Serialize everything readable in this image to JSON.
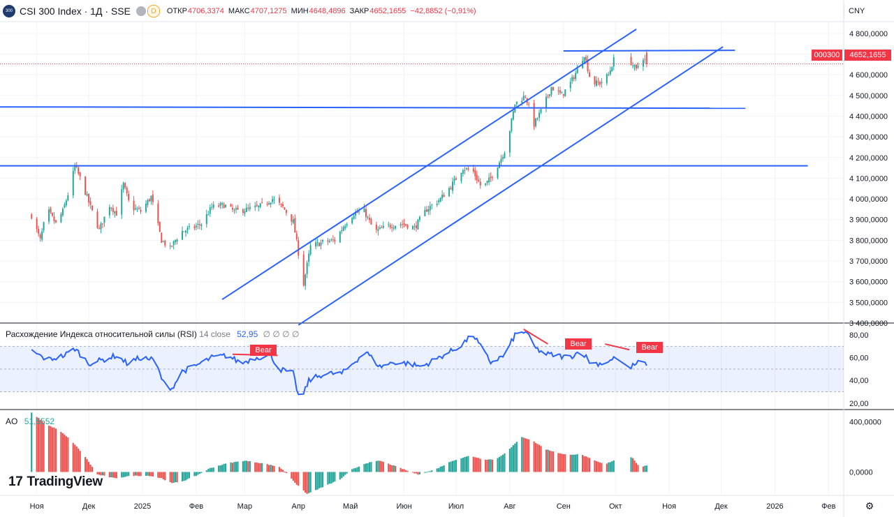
{
  "header": {
    "symbol_icon": "300",
    "title": "CSI 300 Index · 1Д · SSE",
    "interval_badge": "D",
    "ohlc": [
      {
        "label": "ОТКР",
        "value": "4706,3374"
      },
      {
        "label": "МАКС",
        "value": "4707,1275"
      },
      {
        "label": "МИН",
        "value": "4648,4896"
      },
      {
        "label": "ЗАКР",
        "value": "4652,1655"
      }
    ],
    "change": "−42,8852 (−0,91%)",
    "currency": "CNY"
  },
  "price_tag": {
    "ticker": "000300",
    "price": "4652,1655"
  },
  "rsi": {
    "label": "Расхождение Индекса относительной силы (RSI)",
    "params": "14 close",
    "value": "52,95",
    "placeholders": "∅ ∅ ∅ ∅",
    "bear_labels": [
      "Bear",
      "Bear",
      "Bear"
    ]
  },
  "ao": {
    "label": "AO",
    "value": "51,5552"
  },
  "brand": {
    "logo_mark": "17",
    "name": "TradingView"
  },
  "settings_icon": "gear-icon",
  "colors": {
    "up": "#26a69a",
    "down": "#ef5350",
    "lines": "#2962ff",
    "rsi": "#2962ff",
    "bear": "#f23645"
  },
  "chart_data": [
    {
      "type": "candlestick",
      "title": "CSI 300 Index · 1Д · SSE",
      "ylim": [
        3400,
        4850
      ],
      "y_ticks": [
        "3 400,0000",
        "3 500,0000",
        "3 600,0000",
        "3 700,0000",
        "3 800,0000",
        "3 900,0000",
        "4 000,0000",
        "4 100,0000",
        "4 200,0000",
        "4 300,0000",
        "4 400,0000",
        "4 500,0000",
        "4 600,0000",
        "4 700,0000",
        "4 800,0000"
      ],
      "y_tick_values": [
        3400,
        3500,
        3600,
        3700,
        3800,
        3900,
        4000,
        4100,
        4200,
        4300,
        4400,
        4500,
        4600,
        4700,
        4800
      ],
      "x_labels": [
        "Ноя",
        "Дек",
        "2025",
        "Фев",
        "Мар",
        "Апр",
        "Май",
        "Июн",
        "Июл",
        "Авг",
        "Сен",
        "Окт",
        "Ноя",
        "Дек",
        "2026",
        "Фев"
      ],
      "x_label_days": [
        0,
        30,
        61,
        92,
        120,
        151,
        181,
        212,
        242,
        273,
        304,
        334,
        365,
        395,
        426,
        457
      ],
      "last_close": 4652.1655,
      "anchors": [
        {
          "day": -3,
          "close": 3920
        },
        {
          "day": 2,
          "close": 3800
        },
        {
          "day": 6,
          "close": 3950
        },
        {
          "day": 11,
          "close": 3880
        },
        {
          "day": 15,
          "close": 3940
        },
        {
          "day": 19,
          "close": 4050
        },
        {
          "day": 22,
          "close": 4160
        },
        {
          "day": 26,
          "close": 4080
        },
        {
          "day": 31,
          "close": 3960
        },
        {
          "day": 36,
          "close": 3850
        },
        {
          "day": 42,
          "close": 3970
        },
        {
          "day": 46,
          "close": 3930
        },
        {
          "day": 50,
          "close": 4070
        },
        {
          "day": 54,
          "close": 3960
        },
        {
          "day": 60,
          "close": 3940
        },
        {
          "day": 66,
          "close": 4010
        },
        {
          "day": 72,
          "close": 3800
        },
        {
          "day": 77,
          "close": 3760
        },
        {
          "day": 83,
          "close": 3840
        },
        {
          "day": 90,
          "close": 3860
        },
        {
          "day": 95,
          "close": 3880
        },
        {
          "day": 101,
          "close": 3960
        },
        {
          "day": 108,
          "close": 3970
        },
        {
          "day": 114,
          "close": 3940
        },
        {
          "day": 122,
          "close": 3950
        },
        {
          "day": 128,
          "close": 3960
        },
        {
          "day": 136,
          "close": 4000
        },
        {
          "day": 142,
          "close": 3960
        },
        {
          "day": 148,
          "close": 3890
        },
        {
          "day": 154,
          "close": 3590
        },
        {
          "day": 158,
          "close": 3770
        },
        {
          "day": 165,
          "close": 3790
        },
        {
          "day": 172,
          "close": 3800
        },
        {
          "day": 178,
          "close": 3880
        },
        {
          "day": 183,
          "close": 3930
        },
        {
          "day": 189,
          "close": 3940
        },
        {
          "day": 195,
          "close": 3840
        },
        {
          "day": 203,
          "close": 3870
        },
        {
          "day": 211,
          "close": 3880
        },
        {
          "day": 218,
          "close": 3860
        },
        {
          "day": 225,
          "close": 3950
        },
        {
          "day": 233,
          "close": 4000
        },
        {
          "day": 239,
          "close": 4060
        },
        {
          "day": 246,
          "close": 4150
        },
        {
          "day": 252,
          "close": 4130
        },
        {
          "day": 257,
          "close": 4050
        },
        {
          "day": 262,
          "close": 4100
        },
        {
          "day": 267,
          "close": 4180
        },
        {
          "day": 271,
          "close": 4250
        },
        {
          "day": 276,
          "close": 4460
        },
        {
          "day": 282,
          "close": 4500
        },
        {
          "day": 287,
          "close": 4360
        },
        {
          "day": 292,
          "close": 4440
        },
        {
          "day": 297,
          "close": 4540
        },
        {
          "day": 303,
          "close": 4500
        },
        {
          "day": 308,
          "close": 4560
        },
        {
          "day": 313,
          "close": 4640
        },
        {
          "day": 316,
          "close": 4700
        },
        {
          "day": 320,
          "close": 4560
        },
        {
          "day": 325,
          "close": 4560
        },
        {
          "day": 330,
          "close": 4600
        },
        {
          "day": 335,
          "close": 4720
        },
        {
          "day": 339,
          "close": 4760
        },
        {
          "day": 343,
          "close": 4660
        },
        {
          "day": 346,
          "close": 4620
        },
        {
          "day": 349,
          "close": 4700
        },
        {
          "day": 352,
          "close": 4652
        }
      ],
      "trend_lines": [
        {
          "from": {
            "day": -40,
            "price": 4445
          },
          "to": {
            "day": 409,
            "price": 4438
          }
        },
        {
          "from": {
            "day": -40,
            "price": 4160
          },
          "to": {
            "day": 445,
            "price": 4160
          }
        },
        {
          "from": {
            "day": 304,
            "price": 4715
          },
          "to": {
            "day": 403,
            "price": 4718
          }
        },
        {
          "from": {
            "day": 107,
            "price": 3514
          },
          "to": {
            "day": 346,
            "price": 4820
          }
        },
        {
          "from": {
            "day": 151,
            "price": 3390
          },
          "to": {
            "day": 396,
            "price": 4735
          }
        }
      ]
    },
    {
      "type": "line",
      "title": "Расхождение Индекса относительной силы (RSI)",
      "ylim": [
        15,
        88
      ],
      "y_ticks": [
        "20,00",
        "40,00",
        "60,00",
        "80,00"
      ],
      "y_tick_values": [
        20,
        40,
        60,
        80
      ],
      "band": [
        30,
        70
      ],
      "levels": [
        30,
        50,
        70
      ],
      "last_value": 52.95,
      "anchors": [
        {
          "day": -3,
          "value": 66
        },
        {
          "day": 6,
          "value": 58
        },
        {
          "day": 16,
          "value": 62
        },
        {
          "day": 22,
          "value": 68
        },
        {
          "day": 30,
          "value": 55
        },
        {
          "day": 38,
          "value": 58
        },
        {
          "day": 46,
          "value": 62
        },
        {
          "day": 52,
          "value": 55
        },
        {
          "day": 60,
          "value": 60
        },
        {
          "day": 68,
          "value": 58
        },
        {
          "day": 73,
          "value": 38
        },
        {
          "day": 78,
          "value": 33
        },
        {
          "day": 84,
          "value": 48
        },
        {
          "day": 92,
          "value": 53
        },
        {
          "day": 101,
          "value": 60
        },
        {
          "day": 110,
          "value": 62
        },
        {
          "day": 118,
          "value": 55
        },
        {
          "day": 126,
          "value": 60
        },
        {
          "day": 135,
          "value": 62
        },
        {
          "day": 140,
          "value": 50
        },
        {
          "day": 148,
          "value": 46
        },
        {
          "day": 152,
          "value": 20
        },
        {
          "day": 157,
          "value": 40
        },
        {
          "day": 166,
          "value": 46
        },
        {
          "day": 176,
          "value": 46
        },
        {
          "day": 186,
          "value": 60
        },
        {
          "day": 190,
          "value": 65
        },
        {
          "day": 198,
          "value": 52
        },
        {
          "day": 206,
          "value": 56
        },
        {
          "day": 214,
          "value": 55
        },
        {
          "day": 222,
          "value": 52
        },
        {
          "day": 232,
          "value": 60
        },
        {
          "day": 242,
          "value": 68
        },
        {
          "day": 252,
          "value": 80
        },
        {
          "day": 258,
          "value": 65
        },
        {
          "day": 262,
          "value": 56
        },
        {
          "day": 270,
          "value": 62
        },
        {
          "day": 276,
          "value": 80
        },
        {
          "day": 282,
          "value": 83
        },
        {
          "day": 288,
          "value": 68
        },
        {
          "day": 294,
          "value": 63
        },
        {
          "day": 300,
          "value": 62
        },
        {
          "day": 307,
          "value": 60
        },
        {
          "day": 314,
          "value": 66
        },
        {
          "day": 320,
          "value": 55
        },
        {
          "day": 326,
          "value": 55
        },
        {
          "day": 332,
          "value": 58
        },
        {
          "day": 338,
          "value": 65
        },
        {
          "day": 343,
          "value": 52
        },
        {
          "day": 349,
          "value": 57
        },
        {
          "day": 352,
          "value": 52.95
        }
      ],
      "divergences": [
        {
          "from": {
            "day": 113,
            "value": 63
          },
          "to": {
            "day": 139,
            "value": 62
          },
          "label": "Bear"
        },
        {
          "from": {
            "day": 281,
            "value": 85
          },
          "to": {
            "day": 295,
            "value": 72
          },
          "label": "Bear"
        },
        {
          "from": {
            "day": 328,
            "value": 72
          },
          "to": {
            "day": 342,
            "value": 67
          },
          "label": "Bear"
        }
      ]
    },
    {
      "type": "histogram",
      "title": "AO",
      "ylim": [
        -175,
        480
      ],
      "y_ticks": [
        "0,0000",
        "400,0000"
      ],
      "y_tick_values": [
        0,
        400
      ],
      "last_value": 51.5552,
      "anchors": [
        {
          "day": -3,
          "value": 470
        },
        {
          "day": 0,
          "value": 440
        },
        {
          "day": 5,
          "value": 380
        },
        {
          "day": 12,
          "value": 340
        },
        {
          "day": 20,
          "value": 250
        },
        {
          "day": 28,
          "value": 120
        },
        {
          "day": 35,
          "value": -20
        },
        {
          "day": 45,
          "value": -50
        },
        {
          "day": 55,
          "value": -30
        },
        {
          "day": 65,
          "value": -30
        },
        {
          "day": 72,
          "value": -50
        },
        {
          "day": 78,
          "value": -90
        },
        {
          "day": 85,
          "value": -70
        },
        {
          "day": 92,
          "value": -30
        },
        {
          "day": 100,
          "value": 30
        },
        {
          "day": 110,
          "value": 70
        },
        {
          "day": 120,
          "value": 90
        },
        {
          "day": 130,
          "value": 70
        },
        {
          "day": 140,
          "value": 40
        },
        {
          "day": 145,
          "value": -20
        },
        {
          "day": 150,
          "value": -100
        },
        {
          "day": 156,
          "value": -175
        },
        {
          "day": 165,
          "value": -120
        },
        {
          "day": 175,
          "value": -60
        },
        {
          "day": 182,
          "value": 20
        },
        {
          "day": 190,
          "value": 70
        },
        {
          "day": 198,
          "value": 90
        },
        {
          "day": 208,
          "value": 40
        },
        {
          "day": 220,
          "value": -20
        },
        {
          "day": 230,
          "value": 20
        },
        {
          "day": 240,
          "value": 90
        },
        {
          "day": 250,
          "value": 130
        },
        {
          "day": 258,
          "value": 100
        },
        {
          "day": 265,
          "value": 100
        },
        {
          "day": 272,
          "value": 170
        },
        {
          "day": 280,
          "value": 280
        },
        {
          "day": 286,
          "value": 250
        },
        {
          "day": 294,
          "value": 180
        },
        {
          "day": 304,
          "value": 140
        },
        {
          "day": 314,
          "value": 140
        },
        {
          "day": 322,
          "value": 90
        },
        {
          "day": 328,
          "value": 60
        },
        {
          "day": 334,
          "value": 100
        },
        {
          "day": 339,
          "value": 150
        },
        {
          "day": 344,
          "value": 110
        },
        {
          "day": 348,
          "value": 40
        },
        {
          "day": 352,
          "value": 51.5552
        }
      ]
    }
  ]
}
